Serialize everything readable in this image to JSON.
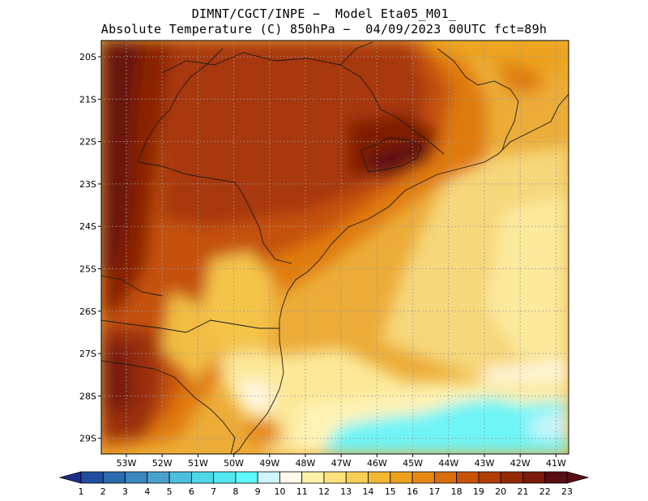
{
  "header": {
    "line1": "DIMNT/CGCT/INPE −  Model Eta05_M01_",
    "line2": "Absolute Temperature (C) 850hPa −  04/09/2023 00UTC fct=89h"
  },
  "map": {
    "lat_labels": [
      "20S",
      "21S",
      "22S",
      "23S",
      "24S",
      "25S",
      "26S",
      "27S",
      "28S",
      "29S"
    ],
    "lon_labels": [
      "53W",
      "52W",
      "51W",
      "50W",
      "49W",
      "48W",
      "47W",
      "46W",
      "45W",
      "44W",
      "43W",
      "42W",
      "41W"
    ],
    "grid": true
  },
  "colorbar": {
    "labels": [
      "1",
      "2",
      "3",
      "4",
      "5",
      "6",
      "7",
      "8",
      "9",
      "10",
      "11",
      "12",
      "13",
      "14",
      "15",
      "16",
      "17",
      "18",
      "19",
      "20",
      "21",
      "22",
      "23"
    ],
    "colors": [
      "#1b2f8a",
      "#1f4f9e",
      "#2a6aad",
      "#3a86bd",
      "#4aa0cc",
      "#4cbfdc",
      "#4fd7e8",
      "#52e8f2",
      "#5ff8fc",
      "#cff4fb",
      "#fffaea",
      "#fff2a8",
      "#ffe27a",
      "#f8cf55",
      "#f2b832",
      "#eca31a",
      "#e68812",
      "#da6d0c",
      "#c85308",
      "#b03d06",
      "#932a04",
      "#7a1a08",
      "#5a0d14"
    ]
  }
}
